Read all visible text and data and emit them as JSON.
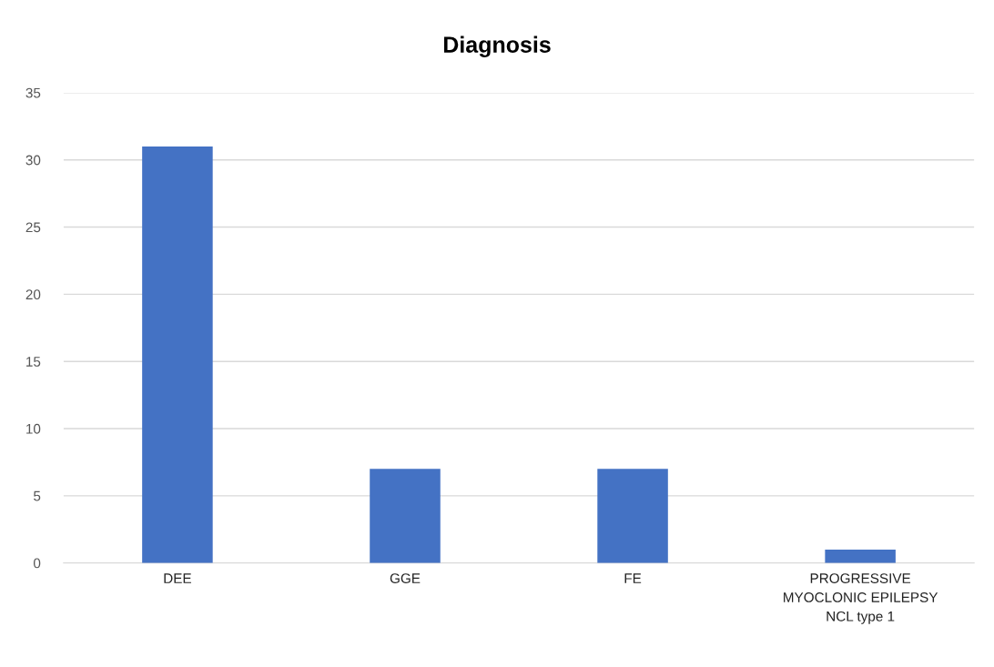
{
  "chart_data": {
    "type": "bar",
    "title": "Diagnosis",
    "categories": [
      "DEE",
      "GGE",
      "FE",
      "PROGRESSIVE\nMYOCLONIC EPILEPSY\nNCL type 1"
    ],
    "values": [
      31,
      7,
      7,
      1
    ],
    "color": "#4472c4",
    "ylim": [
      0,
      35
    ],
    "yticks": [
      0,
      5,
      10,
      15,
      20,
      25,
      30,
      35
    ],
    "grid": "y",
    "legend": false
  }
}
